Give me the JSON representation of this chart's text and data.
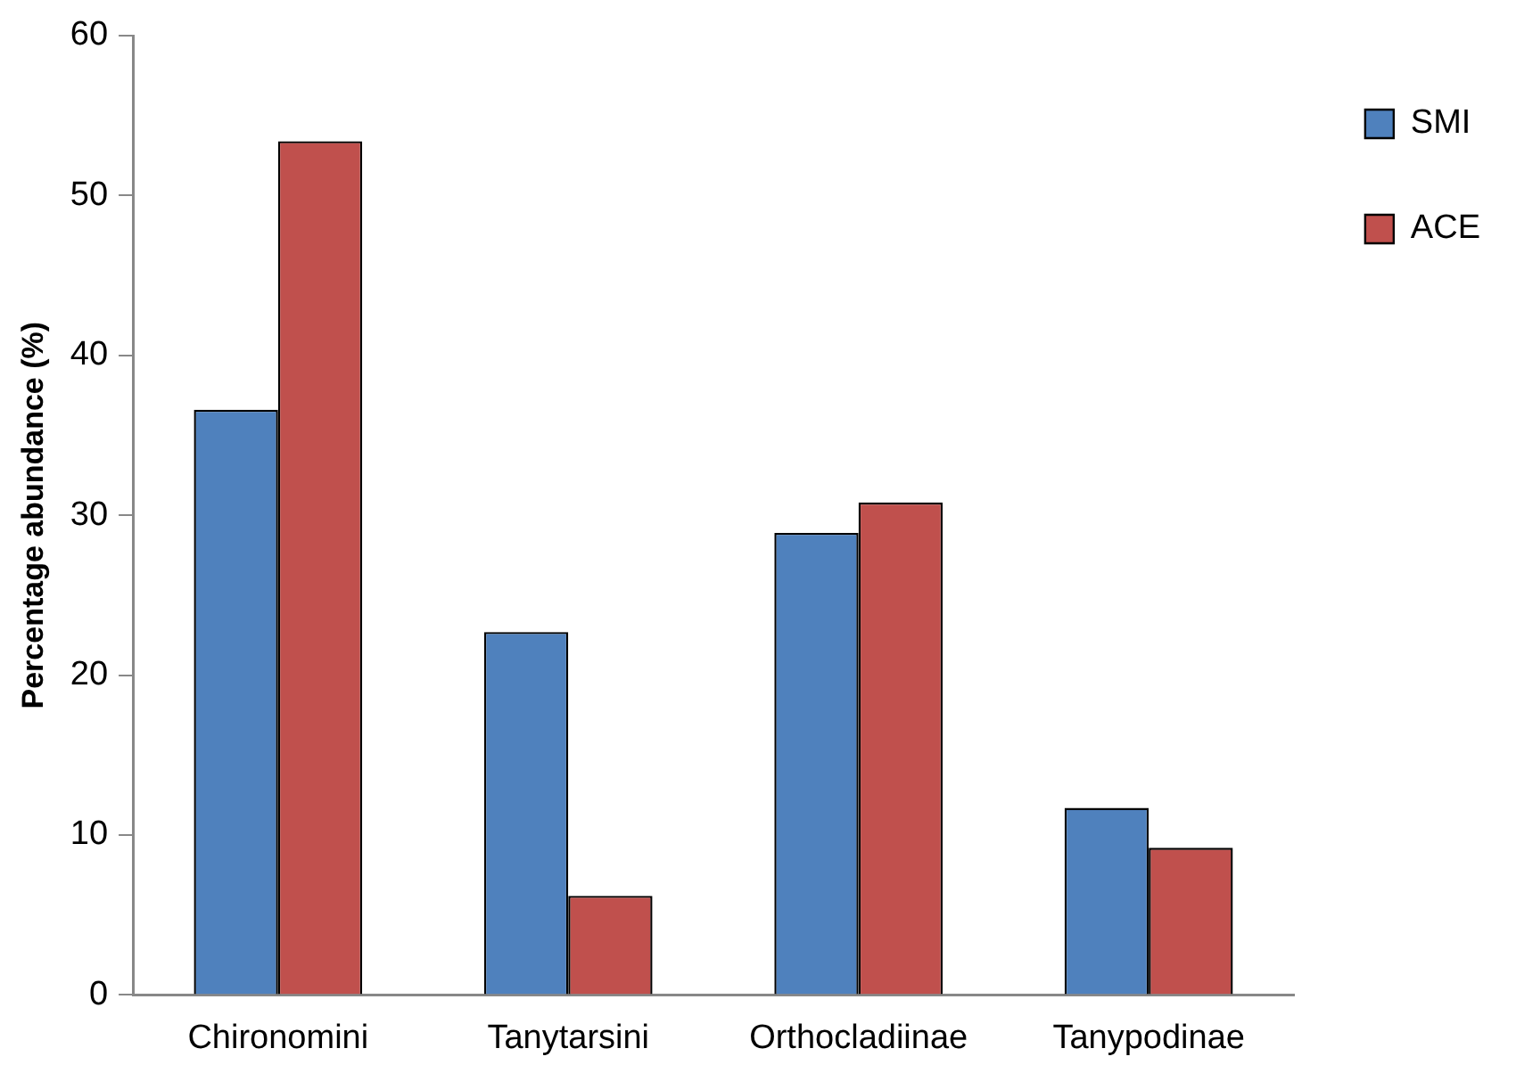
{
  "chart_data": {
    "type": "bar",
    "ylabel": "Percentage abundance (%)",
    "categories": [
      "Chironomini",
      "Tanytarsini",
      "Orthocladiinae",
      "Tanypodinae"
    ],
    "series": [
      {
        "name": "SMI",
        "color": "#4f81bd",
        "values": [
          36.6,
          22.7,
          28.9,
          11.7
        ]
      },
      {
        "name": "ACE",
        "color": "#c0504d",
        "values": [
          53.4,
          6.2,
          30.8,
          9.2
        ]
      }
    ],
    "ylim": [
      0,
      60
    ],
    "yticks": [
      0,
      10,
      20,
      30,
      40,
      50,
      60
    ],
    "grid": false,
    "legend": "top right"
  }
}
